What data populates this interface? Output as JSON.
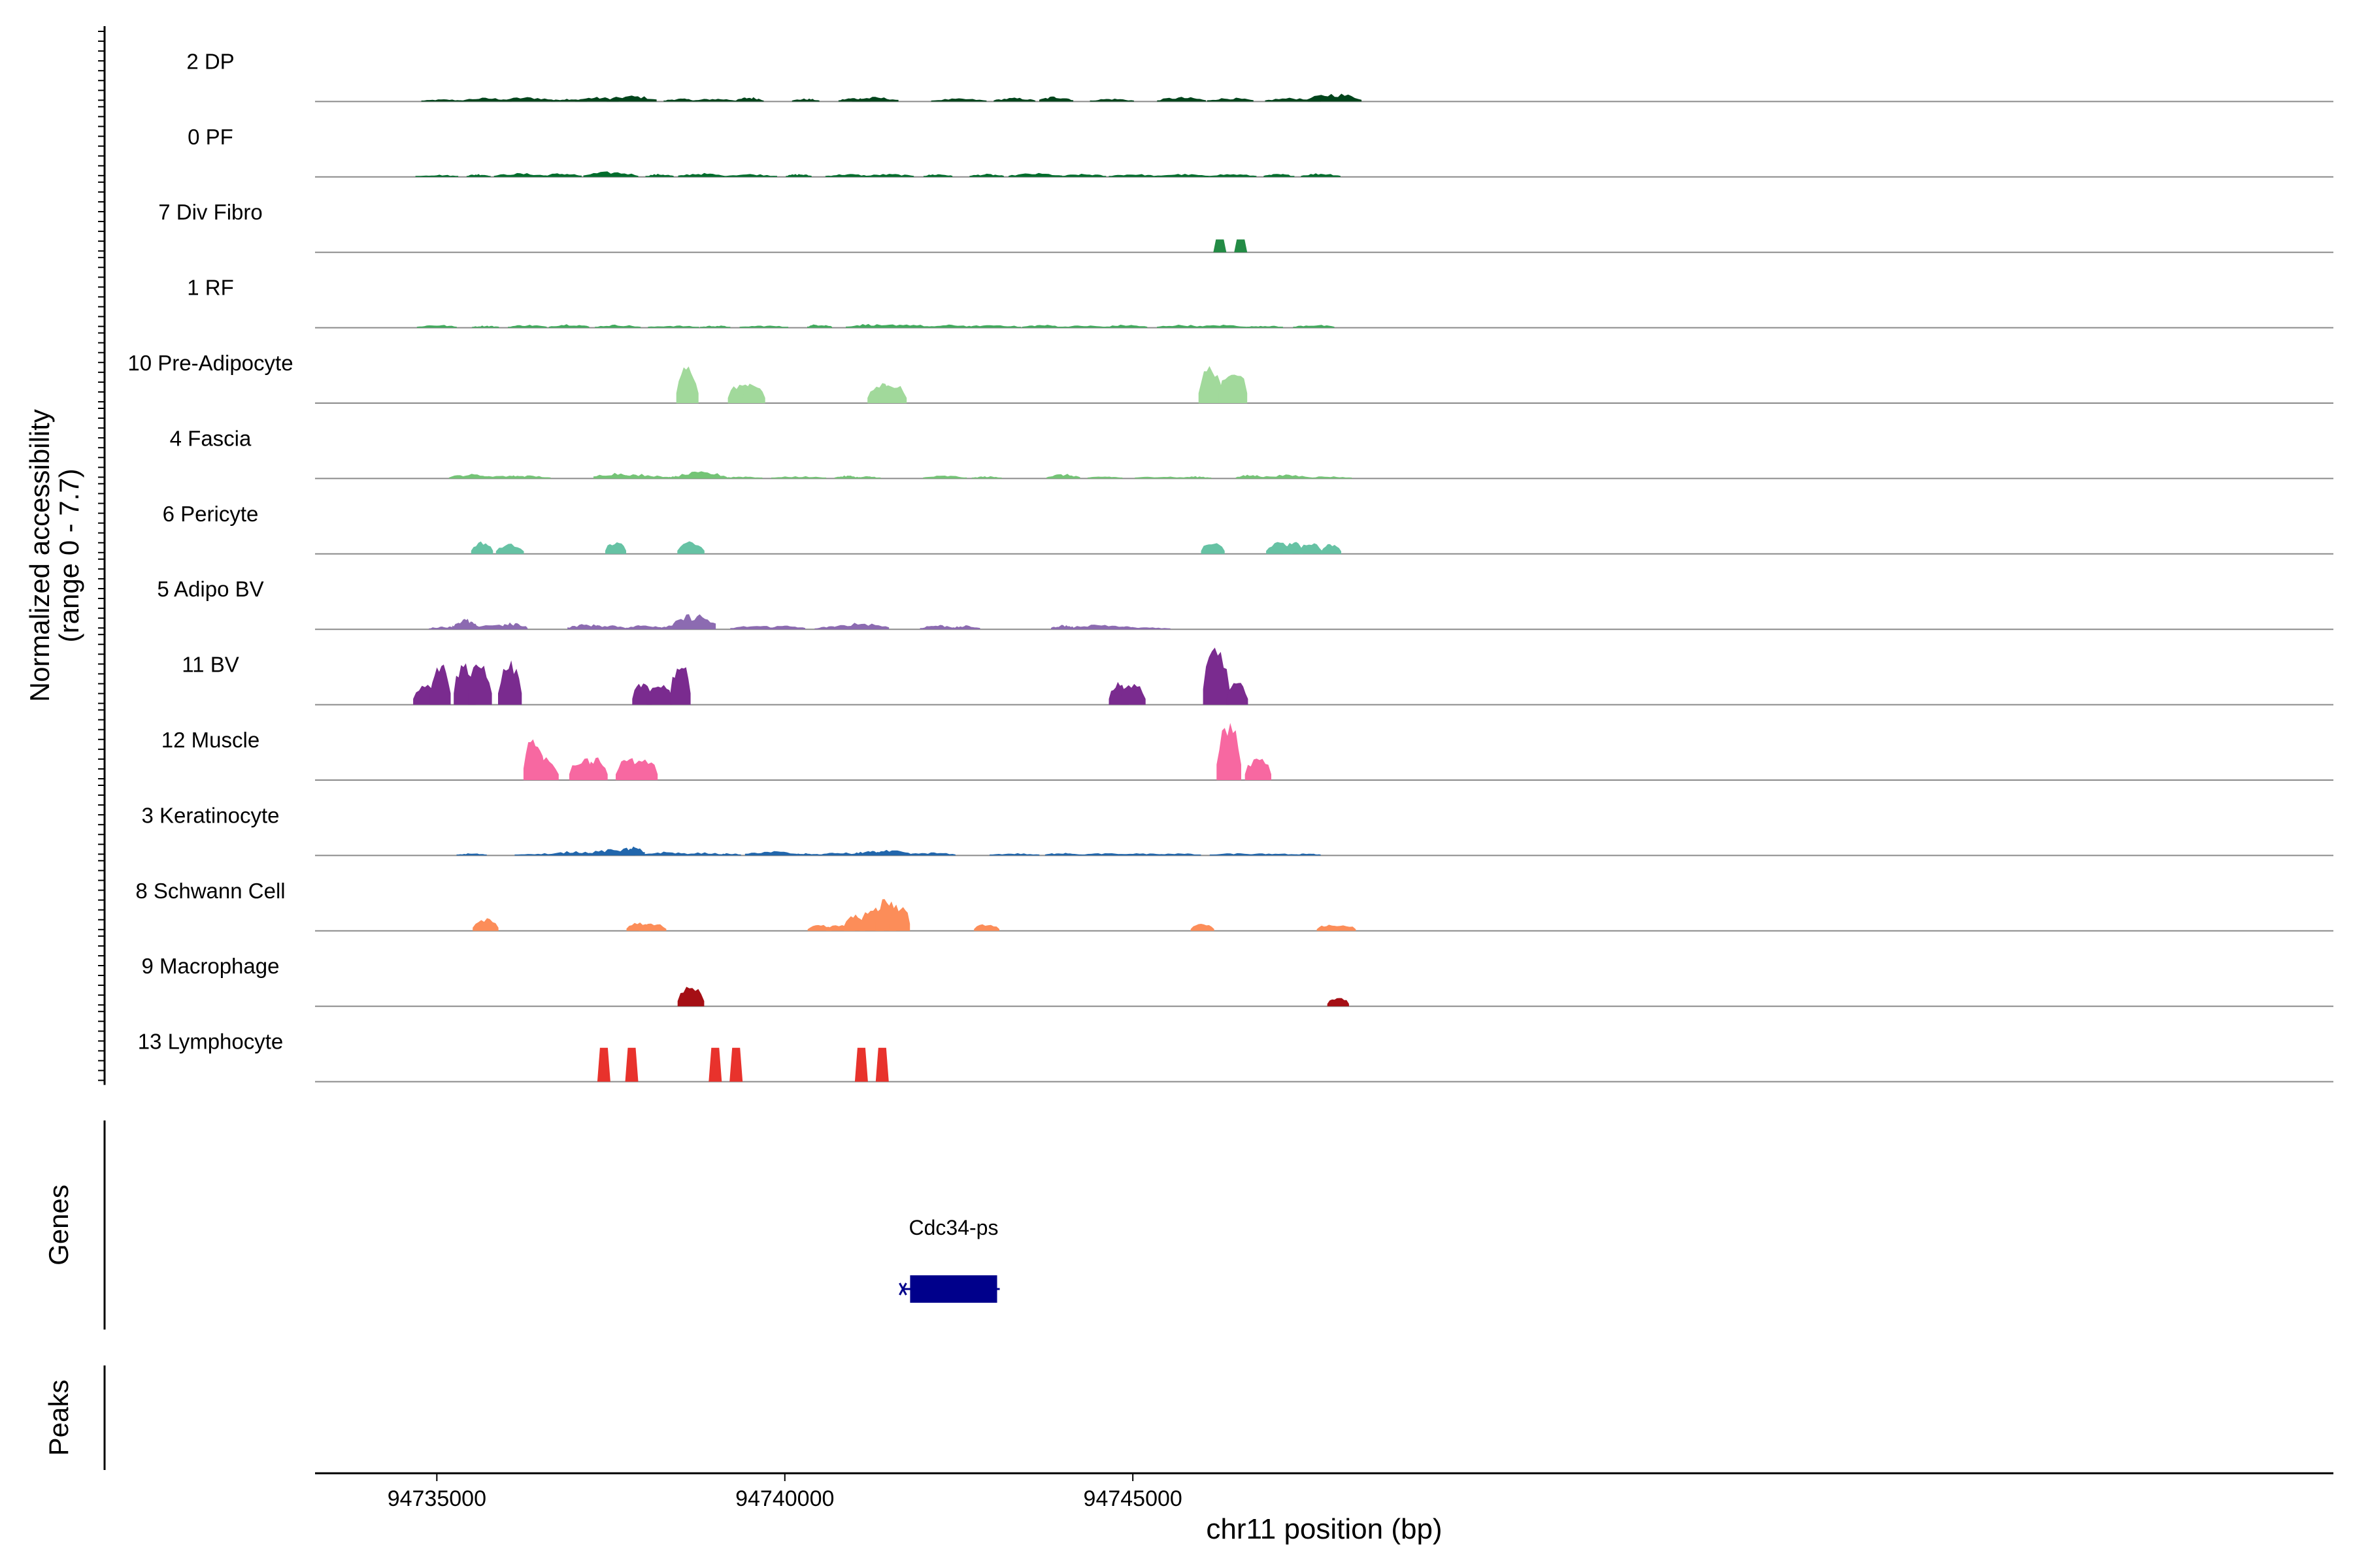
{
  "chart_data": {
    "type": "area",
    "y_axis_label": "Normalized accessibility",
    "y_axis_range_label": "(range 0 - 7.7)",
    "y_range": [
      0,
      7.7
    ],
    "x_axis_label": "chr11 position (bp)",
    "x_range": [
      94733250,
      94762250
    ],
    "x_ticks": [
      {
        "value": 94735000,
        "label": "94735000"
      },
      {
        "value": 94740000,
        "label": "94740000"
      },
      {
        "value": 94745000,
        "label": "94745000"
      }
    ],
    "tracks": [
      {
        "name": "2 DP",
        "color": "#00441b",
        "style": "broad",
        "peaks": [
          [
            94735100,
            0.3
          ],
          [
            94735700,
            0.5
          ],
          [
            94736300,
            0.6
          ],
          [
            94736900,
            0.4
          ],
          [
            94737300,
            0.6
          ],
          [
            94737800,
            0.8
          ],
          [
            94738500,
            0.4
          ],
          [
            94739000,
            0.4
          ],
          [
            94739500,
            0.6
          ],
          [
            94740300,
            0.4
          ],
          [
            94741000,
            0.5
          ],
          [
            94741300,
            0.6
          ],
          [
            94742500,
            0.4
          ],
          [
            94743300,
            0.5
          ],
          [
            94743900,
            0.7
          ],
          [
            94744700,
            0.4
          ],
          [
            94745700,
            0.6
          ],
          [
            94746400,
            0.5
          ],
          [
            94747300,
            0.5
          ],
          [
            94747900,
            1.1
          ]
        ]
      },
      {
        "name": "0 PF",
        "color": "#006d2c",
        "style": "broad",
        "peaks": [
          [
            94735000,
            0.3
          ],
          [
            94735600,
            0.4
          ],
          [
            94736200,
            0.5
          ],
          [
            94736800,
            0.5
          ],
          [
            94737500,
            0.7
          ],
          [
            94738200,
            0.4
          ],
          [
            94738800,
            0.5
          ],
          [
            94739500,
            0.4
          ],
          [
            94740200,
            0.4
          ],
          [
            94740900,
            0.4
          ],
          [
            94741500,
            0.4
          ],
          [
            94742200,
            0.4
          ],
          [
            94742900,
            0.4
          ],
          [
            94743600,
            0.5
          ],
          [
            94744300,
            0.4
          ],
          [
            94745000,
            0.4
          ],
          [
            94745700,
            0.4
          ],
          [
            94746400,
            0.4
          ],
          [
            94747100,
            0.4
          ],
          [
            94747700,
            0.5
          ]
        ]
      },
      {
        "name": "7 Div Fibro",
        "color": "#238b45",
        "style": "block",
        "peaks": [
          [
            94746250,
            1.6
          ],
          [
            94746550,
            1.6
          ]
        ]
      },
      {
        "name": "1 RF",
        "color": "#41ab5d",
        "style": "broad",
        "peaks": [
          [
            94735000,
            0.4
          ],
          [
            94735700,
            0.3
          ],
          [
            94736300,
            0.4
          ],
          [
            94736900,
            0.5
          ],
          [
            94737600,
            0.4
          ],
          [
            94738400,
            0.3
          ],
          [
            94739000,
            0.3
          ],
          [
            94739700,
            0.3
          ],
          [
            94740500,
            0.5
          ],
          [
            94741200,
            0.5
          ],
          [
            94741700,
            0.5
          ],
          [
            94742400,
            0.4
          ],
          [
            94743000,
            0.4
          ],
          [
            94743700,
            0.4
          ],
          [
            94744300,
            0.3
          ],
          [
            94744900,
            0.4
          ],
          [
            94745700,
            0.4
          ],
          [
            94746300,
            0.4
          ],
          [
            94746900,
            0.3
          ],
          [
            94747600,
            0.4
          ]
        ]
      },
      {
        "name": "10 Pre-Adipocyte",
        "color": "#a1d99b",
        "style": "spiky",
        "peaks": [
          [
            94738600,
            4.9
          ],
          [
            94739370,
            2.6
          ],
          [
            94739550,
            2.6
          ],
          [
            94741380,
            2.6
          ],
          [
            94741550,
            2.6
          ],
          [
            94746120,
            4.9
          ],
          [
            94746440,
            4.9
          ]
        ]
      },
      {
        "name": "4 Fascia",
        "color": "#74c476",
        "style": "broad",
        "peaks": [
          [
            94735500,
            0.6
          ],
          [
            94735900,
            0.4
          ],
          [
            94736100,
            0.4
          ],
          [
            94736300,
            0.4
          ],
          [
            94737600,
            0.8
          ],
          [
            94737900,
            0.6
          ],
          [
            94738200,
            0.3
          ],
          [
            94738500,
            0.4
          ],
          [
            94738800,
            0.9
          ],
          [
            94739400,
            0.3
          ],
          [
            94740200,
            0.3
          ],
          [
            94740900,
            0.4
          ],
          [
            94741200,
            0.3
          ],
          [
            94742300,
            0.4
          ],
          [
            94742900,
            0.3
          ],
          [
            94744000,
            0.6
          ],
          [
            94744600,
            0.3
          ],
          [
            94745400,
            0.3
          ],
          [
            94745900,
            0.3
          ],
          [
            94746700,
            0.5
          ],
          [
            94747200,
            0.5
          ],
          [
            94747800,
            0.3
          ]
        ]
      },
      {
        "name": "6 Pericyte",
        "color": "#66c2a4",
        "style": "spiky",
        "peaks": [
          [
            94735650,
            1.6
          ],
          [
            94736050,
            1.3
          ],
          [
            94737570,
            1.6
          ],
          [
            94738650,
            1.6
          ],
          [
            94746150,
            1.5
          ],
          [
            94747100,
            1.5
          ],
          [
            94747300,
            1.6
          ],
          [
            94747550,
            1.5
          ],
          [
            94747850,
            1.3
          ]
        ]
      },
      {
        "name": "5 Adipo BV",
        "color": "#8c6bb1",
        "style": "broad",
        "peaks": [
          [
            94735100,
            0.4
          ],
          [
            94735400,
            1.4
          ],
          [
            94735800,
            0.7
          ],
          [
            94736100,
            0.9
          ],
          [
            94737150,
            0.7
          ],
          [
            94737450,
            0.6
          ],
          [
            94738000,
            0.6
          ],
          [
            94738400,
            0.7
          ],
          [
            94738700,
            2.1
          ],
          [
            94739600,
            0.5
          ],
          [
            94740000,
            0.5
          ],
          [
            94740700,
            0.4
          ],
          [
            94741100,
            0.9
          ],
          [
            94742200,
            0.6
          ],
          [
            94742600,
            0.5
          ],
          [
            94744000,
            0.6
          ],
          [
            94744500,
            0.7
          ],
          [
            94744900,
            0.4
          ],
          [
            94745200,
            0.3
          ]
        ]
      },
      {
        "name": "11 BV",
        "color": "#7a2b8f",
        "style": "spiky",
        "peaks": [
          [
            94734850,
            2.9
          ],
          [
            94735050,
            5.6
          ],
          [
            94735400,
            5.6
          ],
          [
            94735620,
            5.6
          ],
          [
            94736050,
            5.6
          ],
          [
            94737950,
            2.9
          ],
          [
            94738200,
            2.9
          ],
          [
            94738500,
            5.6
          ],
          [
            94744800,
            2.9
          ],
          [
            94745000,
            2.9
          ],
          [
            94746200,
            7.7
          ],
          [
            94746500,
            2.9
          ]
        ]
      },
      {
        "name": "12 Muscle",
        "color": "#f768a1",
        "style": "spiky",
        "peaks": [
          [
            94736400,
            5.7
          ],
          [
            94736550,
            2.9
          ],
          [
            94737100,
            2.9
          ],
          [
            94737300,
            2.9
          ],
          [
            94737750,
            2.9
          ],
          [
            94737970,
            2.9
          ],
          [
            94746380,
            7.7
          ],
          [
            94746800,
            2.9
          ]
        ]
      },
      {
        "name": "3 Keratinocyte",
        "color": "#2166ac",
        "style": "broad",
        "peaks": [
          [
            94735500,
            0.3
          ],
          [
            94736500,
            0.3
          ],
          [
            94737000,
            0.6
          ],
          [
            94737500,
            0.8
          ],
          [
            94737800,
            1.2
          ],
          [
            94738300,
            0.5
          ],
          [
            94738800,
            0.4
          ],
          [
            94739200,
            0.3
          ],
          [
            94739800,
            0.6
          ],
          [
            94740300,
            0.3
          ],
          [
            94740800,
            0.4
          ],
          [
            94741200,
            0.6
          ],
          [
            94741500,
            0.7
          ],
          [
            94742100,
            0.4
          ],
          [
            94743300,
            0.3
          ],
          [
            94744000,
            0.4
          ],
          [
            94744600,
            0.3
          ],
          [
            94745100,
            0.3
          ],
          [
            94745600,
            0.3
          ],
          [
            94746500,
            0.3
          ],
          [
            94747000,
            0.3
          ],
          [
            94747500,
            0.3
          ]
        ]
      },
      {
        "name": "8 Schwann Cell",
        "color": "#fc8d59",
        "style": "spiky",
        "peaks": [
          [
            94735700,
            1.6
          ],
          [
            94737900,
            1.1
          ],
          [
            94738100,
            1.0
          ],
          [
            94740500,
            0.8
          ],
          [
            94740800,
            0.8
          ],
          [
            94741000,
            2.2
          ],
          [
            94741250,
            3.2
          ],
          [
            94741450,
            4.5
          ],
          [
            94741650,
            3.5
          ],
          [
            94742900,
            0.9
          ],
          [
            94746000,
            0.9
          ],
          [
            94747800,
            0.8
          ],
          [
            94748000,
            0.8
          ]
        ]
      },
      {
        "name": "9 Macrophage",
        "color": "#a50f15",
        "style": "spiky",
        "peaks": [
          [
            94738650,
            2.6
          ],
          [
            94747950,
            1.2
          ]
        ]
      },
      {
        "name": "13 Lymphocyte",
        "color": "#e8322c",
        "style": "block",
        "peaks": [
          [
            94737400,
            4.2
          ],
          [
            94737800,
            4.2
          ],
          [
            94739000,
            4.2
          ],
          [
            94739300,
            4.2
          ],
          [
            94741100,
            4.2
          ],
          [
            94741400,
            4.2
          ]
        ]
      }
    ],
    "genes_label": "Genes",
    "peaks_label": "Peaks",
    "genes": [
      {
        "name": "Cdc34-ps",
        "start": 94741800,
        "end": 94743050,
        "color": "#00008b"
      }
    ]
  }
}
